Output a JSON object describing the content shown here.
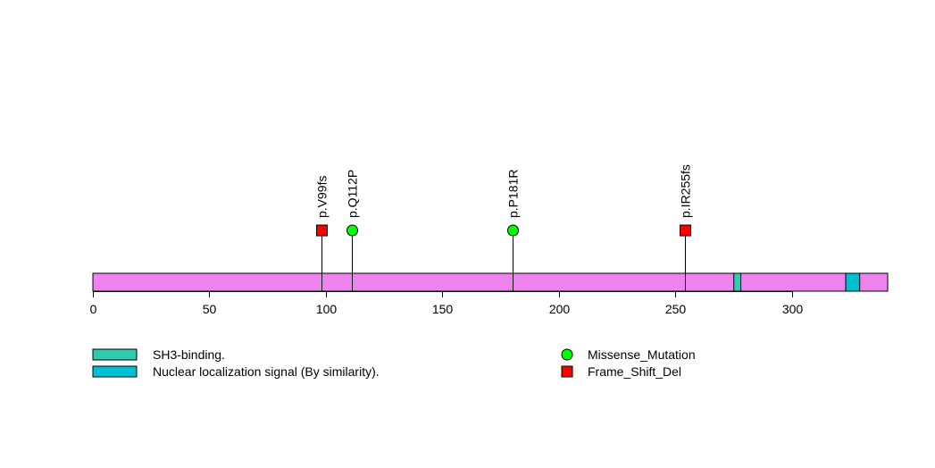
{
  "chart_data": {
    "type": "lollipop",
    "protein_length": 341,
    "x_range": [
      0,
      341
    ],
    "x_ticks": [
      0,
      50,
      100,
      150,
      200,
      250,
      300
    ],
    "backbone_color": "#EE82EE",
    "domains": [
      {
        "name": "SH3-binding.",
        "start": 275,
        "end": 278,
        "color": "#2ECCAA"
      },
      {
        "name": "Nuclear localization signal (By similarity).",
        "start": 323,
        "end": 329,
        "color": "#00BFD0"
      }
    ],
    "mutation_types": [
      {
        "name": "Missense_Mutation",
        "shape": "circle",
        "color": "#00FF00"
      },
      {
        "name": "Frame_Shift_Del",
        "shape": "square",
        "color": "#FF0000"
      }
    ],
    "mutations": [
      {
        "label": "p.V99fs",
        "position": 98,
        "type": "Frame_Shift_Del",
        "count": 1
      },
      {
        "label": "p.Q112P",
        "position": 111,
        "type": "Missense_Mutation",
        "count": 1
      },
      {
        "label": "p.P181R",
        "position": 180,
        "type": "Missense_Mutation",
        "count": 1
      },
      {
        "label": "p.IR255fs",
        "position": 254,
        "type": "Frame_Shift_Del",
        "count": 1
      }
    ]
  }
}
